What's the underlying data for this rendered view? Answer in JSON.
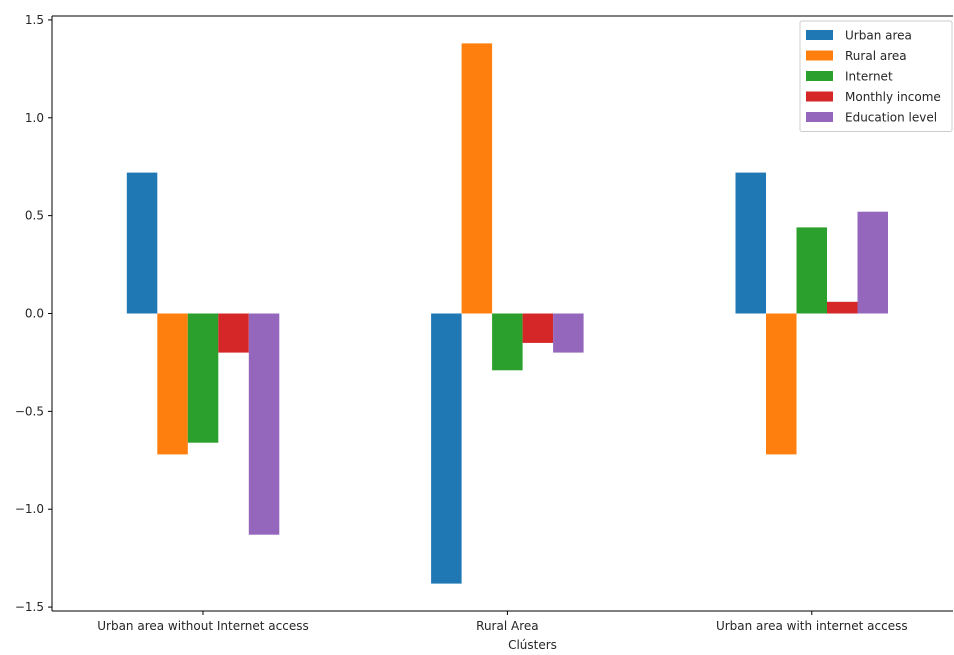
{
  "chart_data": {
    "type": "bar",
    "categories": [
      "Urban area without Internet access",
      "Rural Area",
      "Urban area with internet access"
    ],
    "series": [
      {
        "name": "Urban area",
        "color": "#1f77b4",
        "values": [
          0.72,
          -1.38,
          0.72
        ]
      },
      {
        "name": "Rural area",
        "color": "#ff7f0e",
        "values": [
          -0.72,
          1.38,
          -0.72
        ]
      },
      {
        "name": "Internet",
        "color": "#2ca02c",
        "values": [
          -0.66,
          -0.29,
          0.44
        ]
      },
      {
        "name": "Monthly income",
        "color": "#d62728",
        "values": [
          -0.2,
          -0.15,
          0.06
        ]
      },
      {
        "name": "Education level",
        "color": "#9467bd",
        "values": [
          -1.13,
          -0.2,
          0.52
        ]
      }
    ],
    "title": "",
    "xlabel": "Clústers",
    "ylabel": "",
    "ylim": [
      -1.52,
      1.52
    ],
    "yticks": [
      -1.5,
      -1.0,
      -0.5,
      0.0,
      0.5,
      1.0,
      1.5
    ],
    "ytick_labels": [
      "−1.5",
      "−1.0",
      "−0.5",
      "0.0",
      "0.5",
      "1.0",
      "1.5"
    ],
    "grid": false,
    "legend_position": "top-right"
  }
}
